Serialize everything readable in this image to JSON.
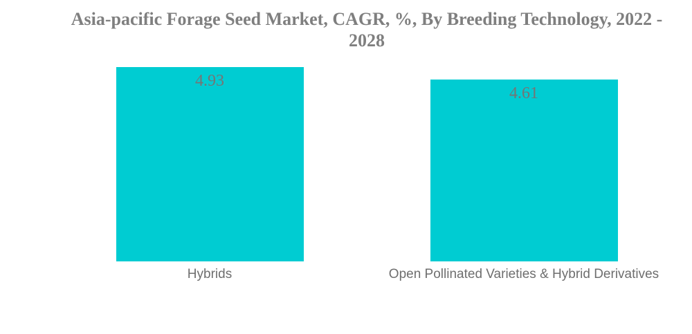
{
  "chart_data": {
    "type": "bar",
    "title": "Asia-pacific Forage Seed Market, CAGR, %, By Breeding Technology, 2022 - 2028",
    "categories": [
      "Hybrids",
      "Open Pollinated Varieties & Hybrid Derivatives"
    ],
    "values": [
      4.93,
      4.61
    ],
    "xlabel": "",
    "ylabel": "",
    "ylim": [
      0,
      4.93
    ],
    "grid": false,
    "legend": false,
    "colors": {
      "bar": "#00ccd2",
      "title_text": "#7f7f7f",
      "value_text": "#757575",
      "category_text": "#6e6e6e",
      "background": "#ffffff"
    }
  }
}
